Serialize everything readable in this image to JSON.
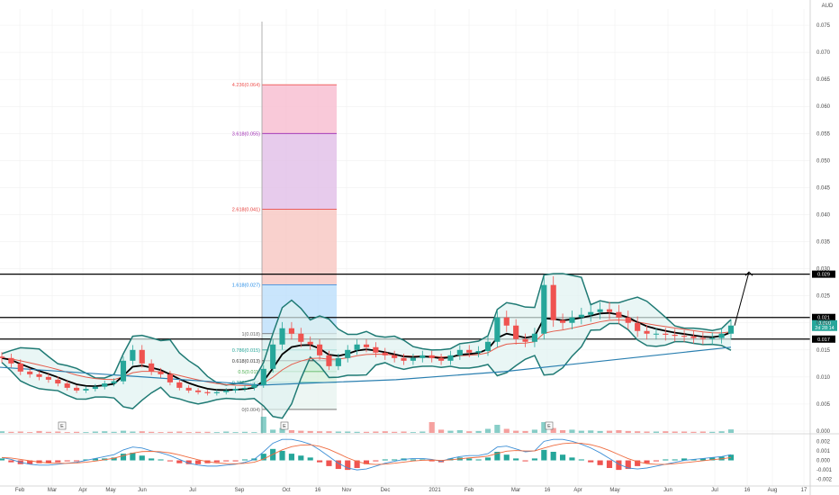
{
  "currency": "AUD",
  "colors": {
    "up": "#26a69a",
    "down": "#ef5350",
    "bb": "#1f7a74",
    "bb_fill": "#e0f2f1",
    "ma_fast": "#000000",
    "ma_slow": "#e55b4b",
    "ma_long": "#2a7fb0",
    "level": "#000000",
    "arrow": "#000000",
    "macd": "#3d8fd6",
    "signal": "#ef6c40",
    "grid": "#eeeeee"
  },
  "chart_data": [
    {
      "type": "candlestick",
      "currency": "AUD",
      "x_labels": [
        "Feb",
        "Mar",
        "Apr",
        "May",
        "Jun",
        "Jul",
        "Sep",
        "Oct",
        "16",
        "Nov",
        "Dec",
        "2021",
        "Feb",
        "Mar",
        "16",
        "Apr",
        "May",
        "Jun",
        "Jul",
        "16",
        "Aug",
        "17"
      ],
      "y_ticks": [
        "0.075",
        "0.070",
        "0.065",
        "0.060",
        "0.055",
        "0.050",
        "0.045",
        "0.040",
        "0.035",
        "0.030",
        "0.025",
        "0.020",
        "0.015",
        "0.010",
        "0.005",
        "0.000"
      ],
      "ylim": [
        -0.0005,
        0.078
      ],
      "levels": [
        {
          "value": 0.029,
          "label": "0.029"
        },
        {
          "value": 0.021,
          "label": "0.021"
        },
        {
          "value": 0.017,
          "label": "0.017"
        }
      ],
      "last_price_labels": [
        "0.020",
        "2d 28:14"
      ],
      "fibonacci": {
        "levels": [
          {
            "ratio": "4.236",
            "price": 0.064,
            "label": "4.236(0.064)",
            "color": "#ef5350",
            "fill": "#f8bbd0"
          },
          {
            "ratio": "3.618",
            "price": 0.055,
            "label": "3.618(0.055)",
            "color": "#9c27b0",
            "fill": "#e1bee7"
          },
          {
            "ratio": "2.618",
            "price": 0.041,
            "label": "2.618(0.041)",
            "color": "#e53935",
            "fill": "#f7c5c0"
          },
          {
            "ratio": "1.618",
            "price": 0.027,
            "label": "1.618(0.027)",
            "color": "#1e88e5",
            "fill": "#bbdefb"
          },
          {
            "ratio": "1",
            "price": 0.018,
            "label": "1(0.018)",
            "color": "#666666",
            "fill": "#d7ecef"
          },
          {
            "ratio": "0.786",
            "price": 0.015,
            "label": "0.786(0.015)",
            "color": "#26a69a",
            "fill": "#d0ede9"
          },
          {
            "ratio": "0.618",
            "price": 0.013,
            "label": "0.618(0.013)",
            "color": "#333333",
            "fill": "#c8ecd3"
          },
          {
            "ratio": "0.5",
            "price": 0.011,
            "label": "0.5(0.011)",
            "color": "#4caf50",
            "fill": "#d7f0dc"
          },
          {
            "ratio": "0.382",
            "price": 0.009,
            "label": "0.382(0.009)",
            "color": "#26a69a",
            "fill": "#e8f4f0"
          },
          {
            "ratio": "0",
            "price": 0.004,
            "label": "0(0.004)",
            "color": "#666666",
            "fill": "#fbd3d0"
          }
        ]
      },
      "earnings_markers": [
        "E",
        "E",
        "E"
      ],
      "series": [
        {
          "name": "price",
          "close": [
            0.0135,
            0.0125,
            0.011,
            0.0105,
            0.01,
            0.0095,
            0.0088,
            0.008,
            0.0075,
            0.0078,
            0.0082,
            0.0088,
            0.0092,
            0.013,
            0.015,
            0.0125,
            0.011,
            0.0105,
            0.009,
            0.008,
            0.0075,
            0.0072,
            0.007,
            0.0072,
            0.0075,
            0.0078,
            0.008,
            0.0085,
            0.0115,
            0.016,
            0.019,
            0.018,
            0.0165,
            0.016,
            0.014,
            0.012,
            0.0135,
            0.015,
            0.016,
            0.0155,
            0.0145,
            0.014,
            0.0135,
            0.013,
            0.0135,
            0.014,
            0.0135,
            0.013,
            0.014,
            0.015,
            0.0145,
            0.0148,
            0.0165,
            0.021,
            0.0195,
            0.017,
            0.0165,
            0.018,
            0.027,
            0.0205,
            0.02,
            0.021,
            0.0215,
            0.022,
            0.0225,
            0.022,
            0.021,
            0.02,
            0.0185,
            0.018,
            0.018,
            0.0178,
            0.0176,
            0.0175,
            0.0172,
            0.017,
            0.0172,
            0.018,
            0.0195
          ]
        },
        {
          "name": "volume",
          "values": [
            0.6,
            0.4,
            0.5,
            0.3,
            0.7,
            0.4,
            0.5,
            0.3,
            0.4,
            0.3,
            0.5,
            0.6,
            0.4,
            0.8,
            0.5,
            0.6,
            0.4,
            0.3,
            0.4,
            0.5,
            0.3,
            0.4,
            0.4,
            0.3,
            0.5,
            0.3,
            0.4,
            0.3,
            6,
            1.2,
            1.8,
            1.0,
            0.8,
            0.7,
            0.6,
            0.6,
            0.5,
            0.5,
            0.4,
            0.4,
            0.5,
            0.6,
            0.4,
            0.5,
            0.3,
            0.5,
            4,
            1.2,
            0.8,
            1.0,
            0.6,
            0.7,
            1.5,
            3,
            1.5,
            0.8,
            0.7,
            1.2,
            4,
            1.8,
            1.0,
            1.2,
            0.8,
            0.9,
            0.7,
            0.8,
            1.0,
            0.7,
            0.6,
            0.5,
            0.5,
            0.6,
            0.5,
            0.5,
            0.4,
            0.5,
            0.4,
            0.6,
            1.3
          ]
        }
      ]
    },
    {
      "type": "bar",
      "name": "macd",
      "y_ticks": [
        "0.002",
        "0.001",
        "0.000",
        "-0.001",
        "-0.002"
      ],
      "ylim": [
        -0.0025,
        0.0026
      ],
      "series": [
        {
          "name": "histogram",
          "values": [
            0.0002,
            -0.0002,
            -0.0004,
            -0.0004,
            -0.0003,
            -0.0003,
            -0.0002,
            -0.0001,
            -0.0001,
            0.0001,
            0.0002,
            0.0002,
            0.0003,
            0.0007,
            0.0008,
            0.0005,
            0.0002,
            0.0001,
            -0.0001,
            -0.0003,
            -0.0004,
            -0.0004,
            -0.0003,
            -0.0002,
            -0.0001,
            -0.0001,
            0.0001,
            0.0002,
            0.0007,
            0.0012,
            0.001,
            0.0007,
            0.0005,
            0.0003,
            -0.0002,
            -0.0006,
            -0.0009,
            -0.001,
            -0.0008,
            -0.0004,
            -0.0001,
            0.0001,
            0.0001,
            0.0002,
            0.0001,
            0.0001,
            -0.0001,
            -0.0002,
            0.0002,
            0.0003,
            0.0002,
            0.0001,
            0.0003,
            0.0009,
            0.0006,
            0.0002,
            -0.0001,
            0.0002,
            0.0011,
            0.0009,
            0.0006,
            0.0003,
            0.0001,
            -0.0002,
            -0.0005,
            -0.0008,
            -0.001,
            -0.0009,
            -0.0006,
            -0.0003,
            -0.0001,
            0.0001,
            0.0001,
            0.0002,
            0.0001,
            0.0002,
            0.0003,
            0.0004,
            0.0006
          ]
        },
        {
          "name": "macd",
          "values": [
            0.0003,
            0.0001,
            -0.0002,
            -0.0004,
            -0.0005,
            -0.0005,
            -0.0004,
            -0.0003,
            -0.0002,
            0.0,
            0.0002,
            0.0004,
            0.0006,
            0.0011,
            0.0014,
            0.0013,
            0.001,
            0.0008,
            0.0005,
            0.0001,
            -0.0003,
            -0.0005,
            -0.0006,
            -0.0006,
            -0.0005,
            -0.0004,
            -0.0002,
            0.0001,
            0.0009,
            0.0018,
            0.0022,
            0.0022,
            0.002,
            0.0017,
            0.0011,
            0.0004,
            -0.0003,
            -0.0008,
            -0.001,
            -0.0009,
            -0.0006,
            -0.0003,
            -0.0001,
            0.0001,
            0.0002,
            0.0002,
            0.0001,
            -0.0001,
            0.0002,
            0.0004,
            0.0005,
            0.0005,
            0.0007,
            0.0014,
            0.0015,
            0.0012,
            0.0009,
            0.001,
            0.002,
            0.0022,
            0.0022,
            0.002,
            0.0017,
            0.0013,
            0.0008,
            0.0002,
            -0.0004,
            -0.0008,
            -0.0009,
            -0.0008,
            -0.0006,
            -0.0004,
            -0.0002,
            0.0,
            0.0001,
            0.0002,
            0.0003,
            0.0004,
            0.0006
          ]
        }
      ]
    }
  ]
}
